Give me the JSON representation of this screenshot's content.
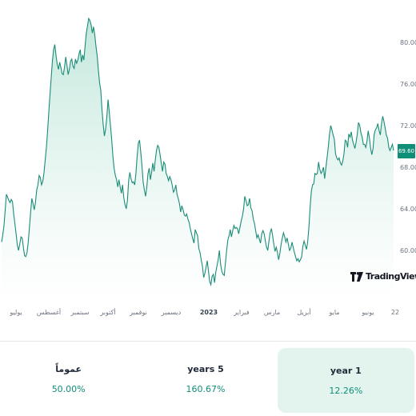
{
  "chart_data": {
    "type": "area",
    "ylim": [
      57,
      83
    ],
    "y_ticks": [
      "80.00",
      "76.00",
      "72.00",
      "68.00",
      "64.00",
      "60.00"
    ],
    "x_ticks": [
      "يوليو",
      "أغسطس",
      "سبتمبر",
      "أكتوبر",
      "نوفمبر",
      "ديسمبر",
      "2023",
      "فبراير",
      "مارس",
      "أبريل",
      "مايو",
      "يونيو",
      "22"
    ],
    "bold_tick": "2023",
    "last_price": "69.60",
    "values": [
      60.8,
      61.5,
      62.4,
      63.9,
      65.4,
      65.1,
      64.8,
      64.6,
      64.9,
      64.7,
      63.5,
      62.6,
      61.6,
      60.5,
      60.0,
      60.6,
      61.3,
      61.2,
      60.3,
      59.5,
      59.4,
      59.8,
      60.8,
      62.2,
      63.7,
      65.0,
      64.5,
      63.9,
      64.6,
      65.8,
      66.3,
      67.2,
      67.0,
      66.3,
      66.6,
      67.4,
      68.6,
      69.9,
      71.5,
      73.3,
      75.0,
      76.6,
      78.2,
      79.3,
      79.8,
      78.7,
      77.9,
      77.4,
      78.1,
      77.6,
      77.0,
      76.9,
      77.6,
      78.6,
      77.8,
      76.9,
      77.4,
      78.2,
      78.4,
      77.7,
      77.5,
      78.4,
      78.0,
      78.3,
      78.9,
      79.3,
      78.1,
      78.8,
      78.3,
      79.7,
      80.9,
      81.6,
      82.3,
      82.1,
      81.7,
      80.9,
      81.5,
      80.7,
      79.6,
      78.7,
      77.3,
      76.1,
      75.4,
      73.5,
      72.1,
      71.0,
      71.7,
      72.9,
      74.5,
      73.3,
      72.0,
      70.7,
      69.1,
      67.9,
      67.2,
      66.8,
      66.1,
      66.8,
      66.1,
      65.5,
      66.3,
      65.1,
      64.4,
      64.0,
      64.8,
      66.7,
      67.5,
      66.9,
      66.5,
      66.6,
      66.3,
      67.4,
      69.0,
      70.3,
      70.6,
      69.5,
      68.2,
      66.6,
      65.8,
      65.2,
      66.1,
      67.4,
      67.9,
      66.8,
      67.5,
      68.4,
      67.6,
      68.7,
      69.6,
      70.1,
      69.9,
      69.2,
      68.4,
      67.6,
      68.5,
      68.3,
      67.4,
      67.1,
      66.7,
      67.1,
      66.8,
      66.3,
      65.6,
      65.8,
      66.3,
      65.4,
      65.0,
      64.5,
      63.7,
      64.3,
      63.9,
      63.4,
      63.3,
      63.5,
      63.0,
      62.7,
      62.1,
      61.6,
      61.1,
      60.7,
      62.0,
      61.7,
      61.4,
      60.2,
      59.8,
      59.1,
      58.5,
      57.4,
      57.8,
      58.4,
      59.0,
      58.0,
      57.0,
      56.7,
      57.5,
      57.7,
      56.9,
      57.9,
      58.5,
      59.1,
      60.0,
      58.7,
      58.0,
      57.7,
      57.6,
      58.8,
      60.0,
      61.0,
      61.4,
      62.0,
      61.3,
      61.9,
      62.4,
      62.1,
      62.2,
      62.1,
      61.6,
      62.2,
      62.8,
      63.3,
      64.0,
      65.2,
      64.8,
      64.3,
      64.4,
      65.0,
      64.1,
      63.8,
      63.0,
      62.6,
      61.9,
      61.2,
      61.5,
      61.1,
      60.7,
      61.6,
      61.9,
      61.6,
      60.9,
      60.3,
      60.0,
      60.9,
      61.7,
      62.1,
      61.4,
      60.6,
      59.9,
      60.3,
      59.8,
      59.1,
      59.7,
      60.6,
      61.2,
      61.7,
      61.3,
      60.8,
      61.2,
      60.6,
      60.0,
      60.2,
      60.8,
      60.3,
      59.8,
      59.4,
      59.0,
      59.2,
      58.9,
      59.1,
      59.4,
      60.4,
      60.9,
      60.5,
      60.1,
      60.8,
      62.2,
      64.1,
      65.7,
      66.3,
      66.4,
      67.4,
      67.3,
      67.4,
      68.5,
      67.8,
      67.4,
      67.6,
      68.0,
      66.9,
      67.9,
      68.9,
      69.9,
      71.1,
      72.0,
      71.6,
      71.1,
      70.7,
      69.3,
      68.9,
      68.7,
      68.9,
      68.4,
      68.2,
      68.6,
      69.3,
      70.6,
      70.5,
      69.9,
      71.2,
      70.9,
      71.4,
      70.6,
      70.2,
      69.8,
      70.4,
      71.2,
      72.3,
      72.0,
      71.3,
      70.9,
      70.2,
      70.2,
      69.9,
      70.5,
      71.5,
      70.8,
      69.8,
      69.2,
      69.8,
      71.2,
      71.6,
      71.8,
      72.2,
      71.5,
      71.1,
      72.2,
      72.9,
      72.4,
      71.8,
      71.1,
      70.8,
      69.9,
      69.6,
      69.9,
      70.2,
      69.6
    ]
  },
  "stats": [
    {
      "label": "عموماً",
      "value": "50.00%"
    },
    {
      "label": "years 5",
      "value": "160.67%"
    },
    {
      "label": "year 1",
      "value": "12.26%"
    }
  ],
  "branding": {
    "logo_icon": "tradingview-logo-icon",
    "logo_text": "TradingView"
  },
  "colors": {
    "line": "#1a8c78",
    "fill": "#d9f1ea",
    "accent": "#0f8f78",
    "active_bg": "#e3f4ef"
  }
}
